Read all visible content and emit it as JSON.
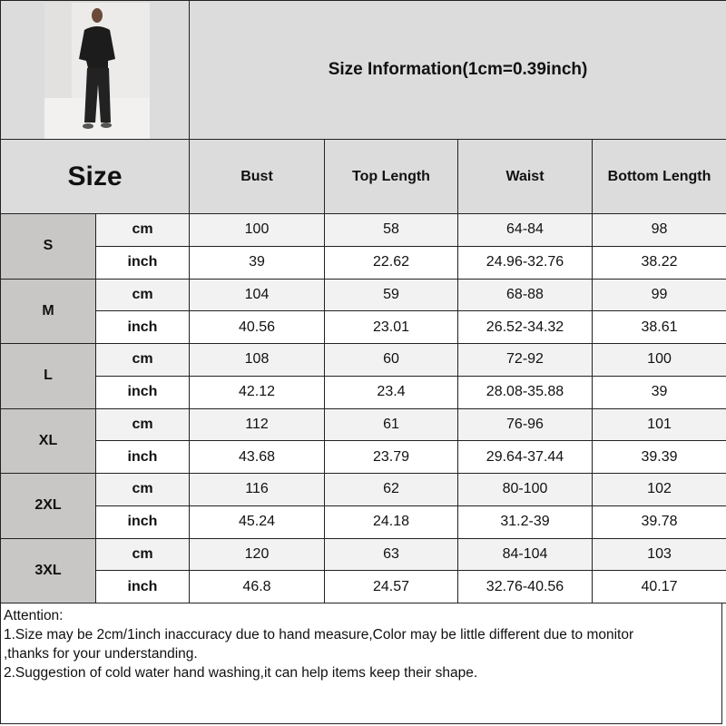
{
  "title": "Size Information(1cm=0.39inch)",
  "size_header": "Size",
  "columns": [
    "Bust",
    "Top Length",
    "Waist",
    "Bottom Length"
  ],
  "units": [
    "cm",
    "inch"
  ],
  "sizes": [
    {
      "size": "S",
      "cm": [
        "100",
        "58",
        "64-84",
        "98"
      ],
      "inch": [
        "39",
        "22.62",
        "24.96-32.76",
        "38.22"
      ]
    },
    {
      "size": "M",
      "cm": [
        "104",
        "59",
        "68-88",
        "99"
      ],
      "inch": [
        "40.56",
        "23.01",
        "26.52-34.32",
        "38.61"
      ]
    },
    {
      "size": "L",
      "cm": [
        "108",
        "60",
        "72-92",
        "100"
      ],
      "inch": [
        "42.12",
        "23.4",
        "28.08-35.88",
        "39"
      ]
    },
    {
      "size": "XL",
      "cm": [
        "112",
        "61",
        "76-96",
        "101"
      ],
      "inch": [
        "43.68",
        "23.79",
        "29.64-37.44",
        "39.39"
      ]
    },
    {
      "size": "2XL",
      "cm": [
        "116",
        "62",
        "80-100",
        "102"
      ],
      "inch": [
        "45.24",
        "24.18",
        "31.2-39",
        "39.78"
      ]
    },
    {
      "size": "3XL",
      "cm": [
        "120",
        "63",
        "84-104",
        "103"
      ],
      "inch": [
        "46.8",
        "24.57",
        "32.76-40.56",
        "40.17"
      ]
    }
  ],
  "notes": [
    "Attention:",
    "1.Size may be 2cm/1inch inaccuracy due to hand measure,Color may be little different due to monitor",
    ",thanks for your understanding.",
    "2.Suggestion of cold water hand washing,it can help items keep their shape."
  ]
}
